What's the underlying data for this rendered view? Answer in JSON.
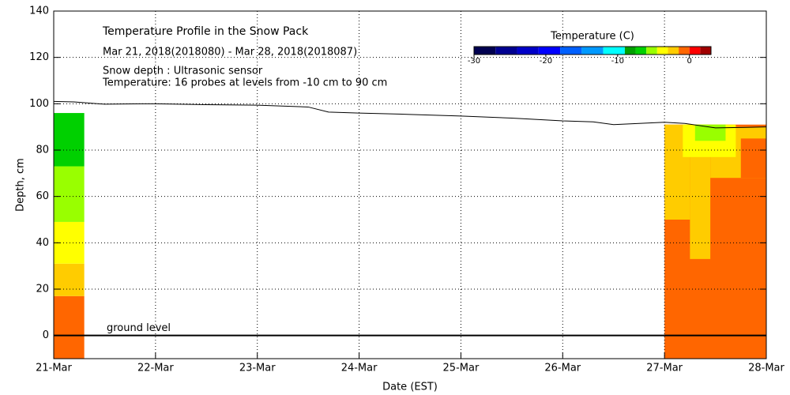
{
  "chart_data": {
    "type": "profile",
    "title": "Temperature Profile in the Snow Pack",
    "subtitle": "Mar 21, 2018(2018080) - Mar 28, 2018(2018087)",
    "notes": [
      "Snow depth : Ultrasonic sensor",
      "Temperature: 16 probes at levels from -10 cm to 90 cm"
    ],
    "x_label": "Date (EST)",
    "y_label": "Depth, cm",
    "xlim": [
      0,
      7
    ],
    "xticks": [
      {
        "value": 0,
        "label": "21-Mar"
      },
      {
        "value": 1,
        "label": "22-Mar"
      },
      {
        "value": 2,
        "label": "23-Mar"
      },
      {
        "value": 3,
        "label": "24-Mar"
      },
      {
        "value": 4,
        "label": "25-Mar"
      },
      {
        "value": 5,
        "label": "26-Mar"
      },
      {
        "value": 6,
        "label": "27-Mar"
      },
      {
        "value": 7,
        "label": "28-Mar"
      }
    ],
    "ylim": [
      -10,
      140
    ],
    "yticks": [
      0,
      20,
      40,
      60,
      80,
      100,
      120,
      140
    ],
    "grid": true,
    "ground_level": {
      "label": "ground level",
      "value": 0
    },
    "snow_depth": {
      "color": "#000000",
      "x": [
        0,
        0.2,
        0.5,
        0.87,
        1,
        1.5,
        2,
        2.5,
        2.7,
        3,
        3.5,
        4,
        4.5,
        5,
        5.3,
        5.5,
        6,
        6.2,
        6.5,
        6.8,
        7
      ],
      "values": [
        101,
        100.8,
        99.8,
        100,
        100,
        99.6,
        99.4,
        98.6,
        96.4,
        96,
        95.4,
        94.7,
        93.8,
        92.6,
        92.2,
        91,
        92,
        91.5,
        89.6,
        89.8,
        90
      ]
    },
    "colorbar": {
      "title": "Temperature (C)",
      "lim": [
        -30,
        3
      ],
      "ticks": [
        -30,
        -20,
        -10,
        0
      ],
      "bounds": [
        -30,
        -27,
        -24,
        -21,
        -18,
        -15,
        -12,
        -9,
        -7.5,
        -6,
        -4.5,
        -3,
        -1.5,
        0,
        1.5,
        3
      ],
      "colors": [
        "#000050",
        "#000090",
        "#0000c8",
        "#0000ff",
        "#0060ff",
        "#0099ff",
        "#00ffff",
        "#00a000",
        "#00d000",
        "#99ff00",
        "#ffff00",
        "#ffcc00",
        "#ff6600",
        "#ff0000",
        "#a00000"
      ]
    },
    "regions": [
      {
        "x": [
          0,
          0.3
        ],
        "depth": [
          -10,
          17
        ],
        "temperature": -0.7
      },
      {
        "x": [
          0,
          0.3
        ],
        "depth": [
          17,
          31
        ],
        "temperature": -2
      },
      {
        "x": [
          0,
          0.3
        ],
        "depth": [
          31,
          49
        ],
        "temperature": -3.5
      },
      {
        "x": [
          0,
          0.3
        ],
        "depth": [
          49,
          73
        ],
        "temperature": -5
      },
      {
        "x": [
          0,
          0.3
        ],
        "depth": [
          73,
          96
        ],
        "temperature": -6.5
      },
      {
        "x": [
          6.0,
          7
        ],
        "depth": [
          -10,
          91
        ],
        "temperature": -0.7
      },
      {
        "x": [
          6.0,
          6.25
        ],
        "depth": [
          50,
          91
        ],
        "temperature": -2
      },
      {
        "x": [
          6.25,
          6.45
        ],
        "depth": [
          33,
          91
        ],
        "temperature": -2
      },
      {
        "x": [
          6.45,
          7
        ],
        "depth": [
          68,
          90
        ],
        "temperature": -2
      },
      {
        "x": [
          6.75,
          7
        ],
        "depth": [
          68,
          85
        ],
        "temperature": -0.7
      },
      {
        "x": [
          6.18,
          6.7
        ],
        "depth": [
          77,
          91
        ],
        "temperature": -3.5
      },
      {
        "x": [
          6.3,
          6.6
        ],
        "depth": [
          84,
          91
        ],
        "temperature": -5
      }
    ]
  }
}
